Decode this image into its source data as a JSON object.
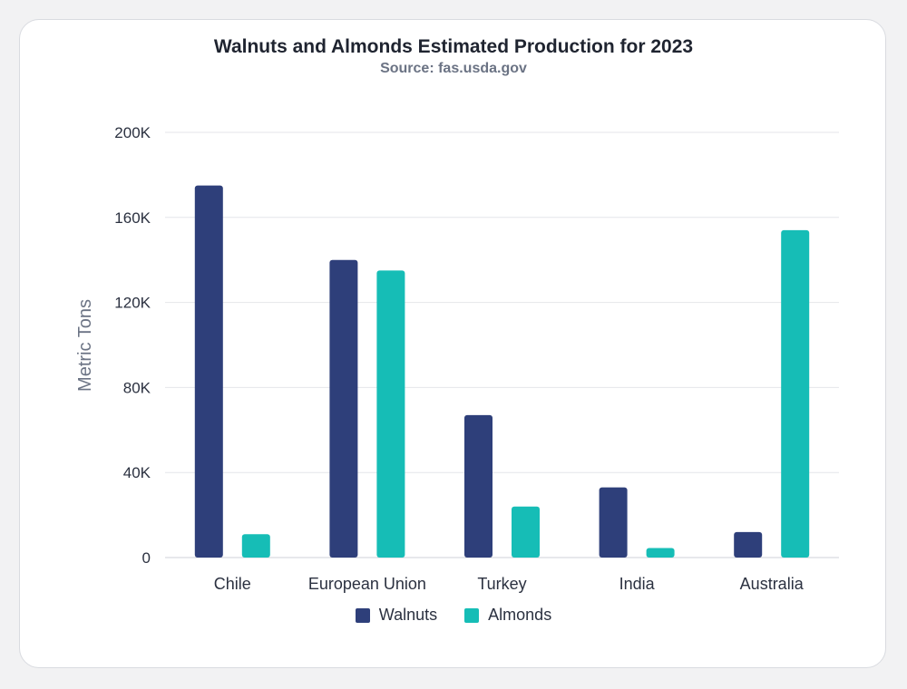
{
  "chart_data": {
    "type": "bar",
    "title": "Walnuts and Almonds Estimated Production for 2023",
    "subtitle": "Source: fas.usda.gov",
    "xlabel": "",
    "ylabel": "Metric Tons",
    "categories": [
      "Chile",
      "European Union",
      "Turkey",
      "India",
      "Australia"
    ],
    "series": [
      {
        "name": "Walnuts",
        "values": [
          175000,
          140000,
          67000,
          33000,
          12000
        ],
        "color": "#2e3f7a"
      },
      {
        "name": "Almonds",
        "values": [
          11000,
          135000,
          24000,
          4500,
          154000
        ],
        "color": "#16bdb6"
      }
    ],
    "ylim": [
      0,
      200000
    ],
    "yticks": [
      0,
      40000,
      80000,
      120000,
      160000,
      200000
    ],
    "ytick_labels": [
      "0",
      "40K",
      "80K",
      "120K",
      "160K",
      "200K"
    ],
    "grid": true,
    "legend_position": "bottom"
  },
  "colors": {
    "background": "#f2f2f3",
    "card": "#ffffff",
    "grid": "#e4e6ea",
    "text": "#2b3140",
    "muted": "#6b7384"
  }
}
